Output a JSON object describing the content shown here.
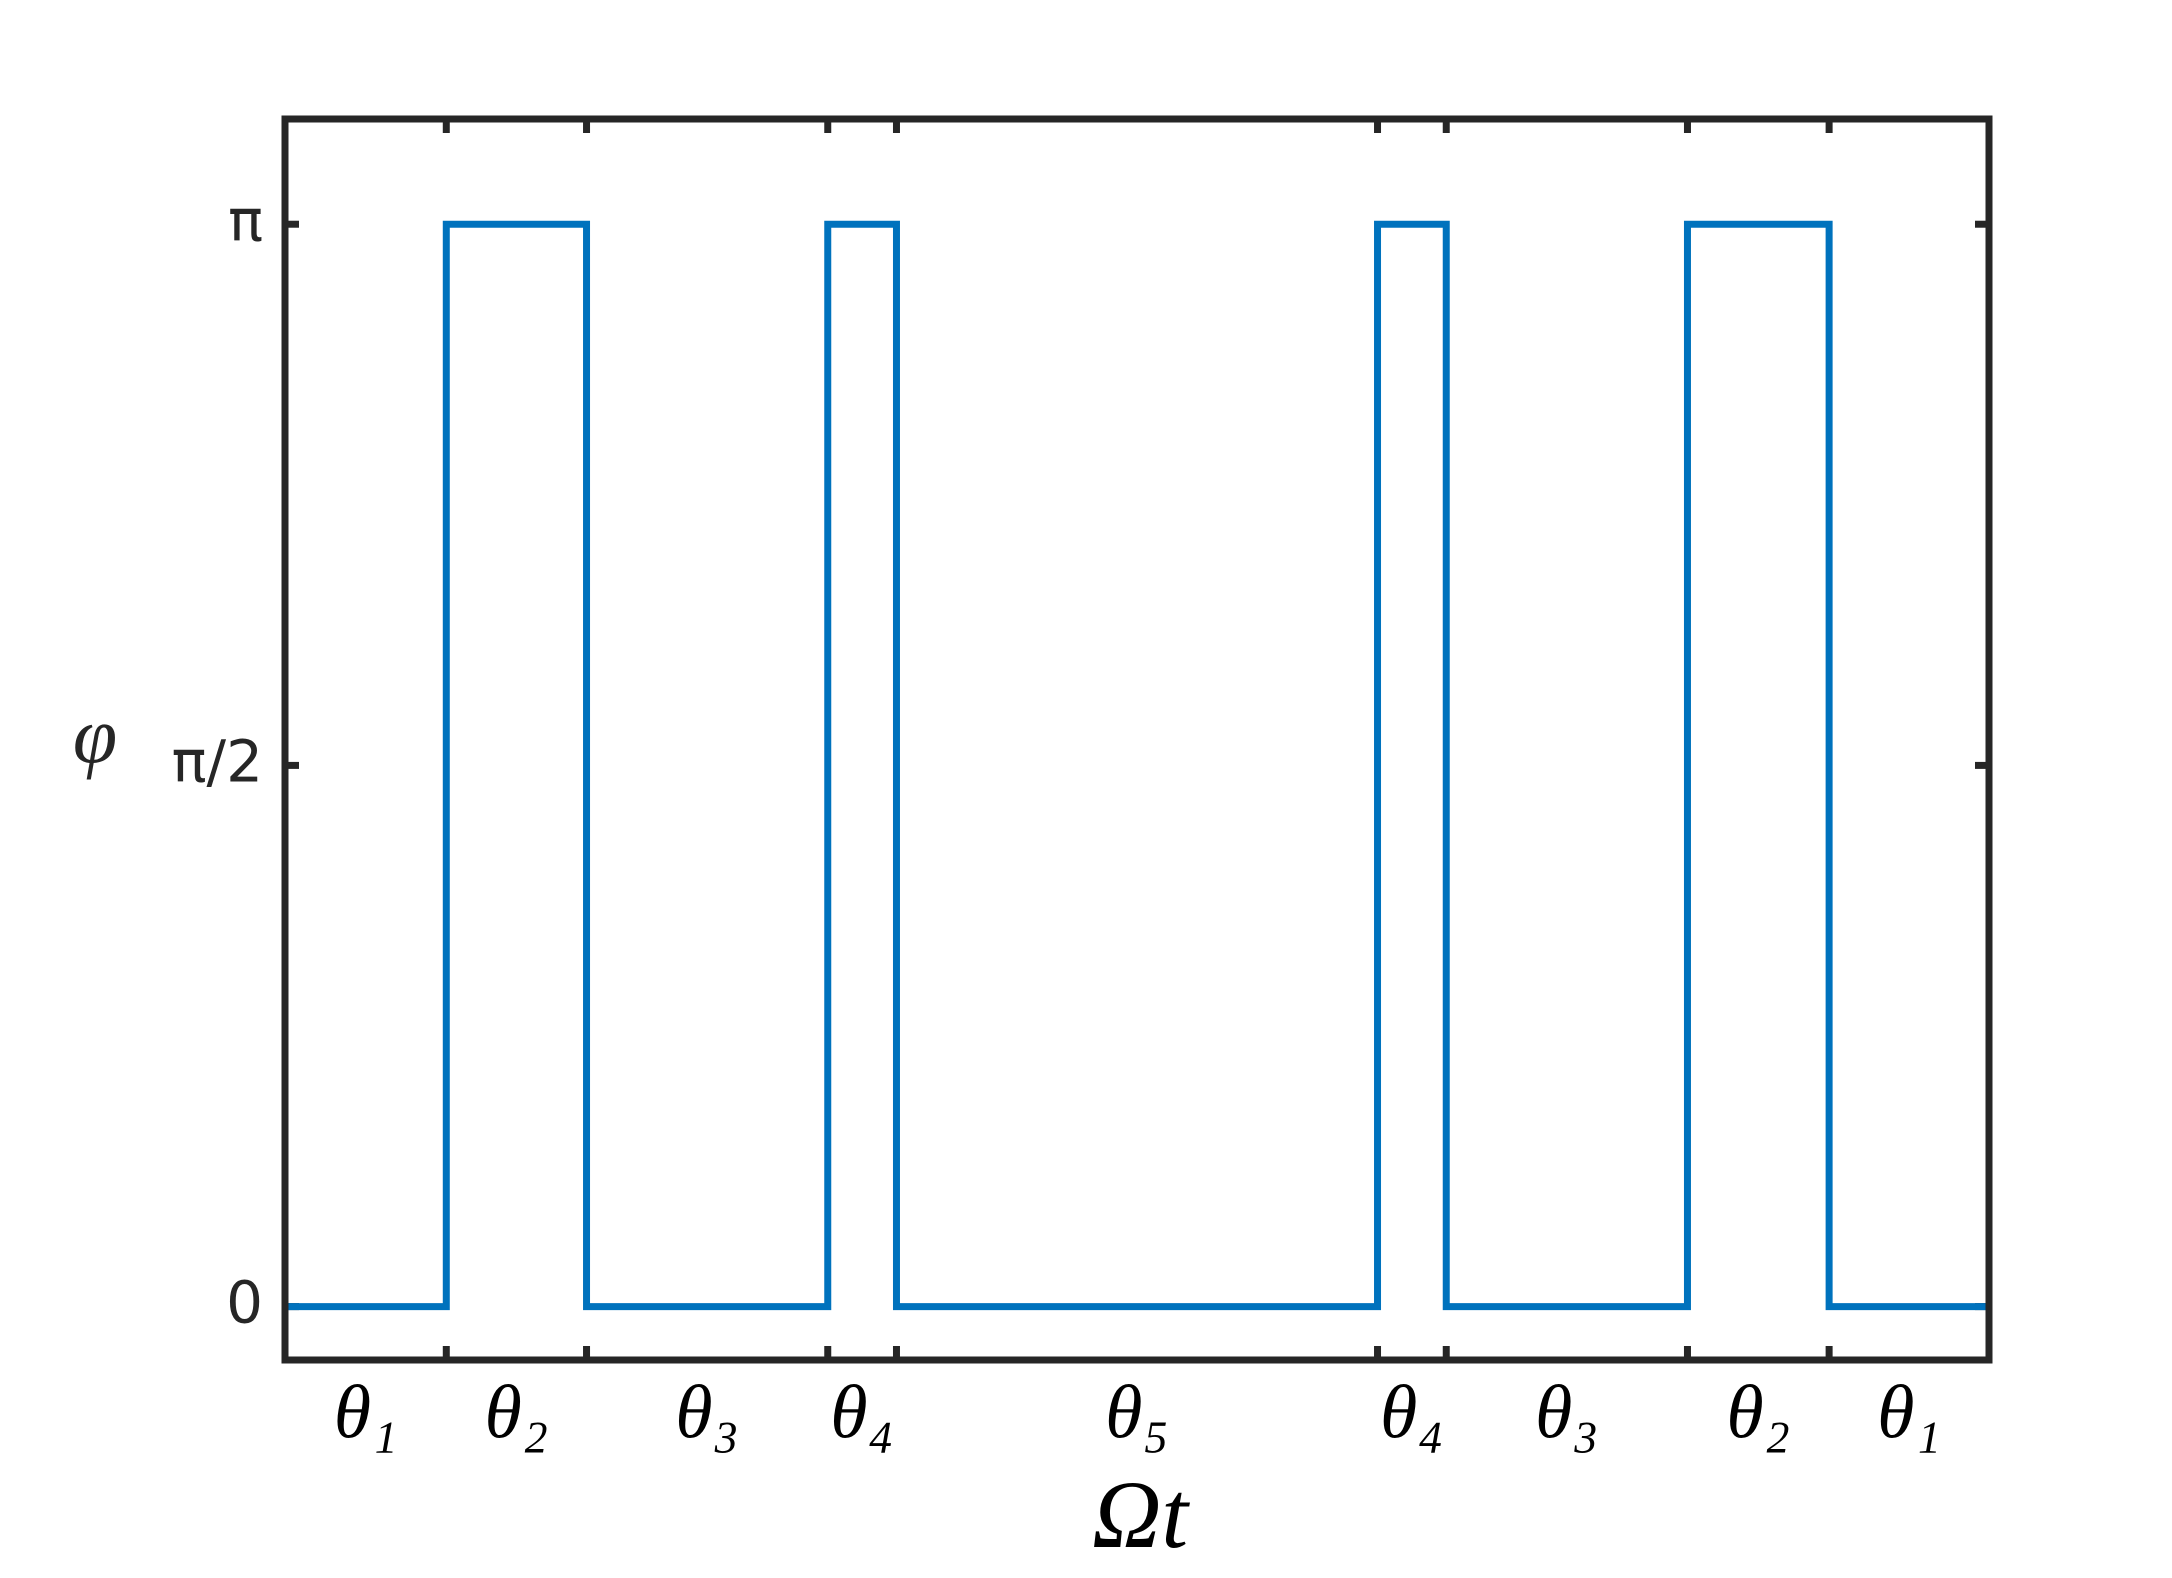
{
  "chart_data": {
    "type": "line",
    "x_label": "Ωt",
    "y_label": "φ",
    "x": [
      0,
      1.15,
      1.15,
      2.15,
      2.15,
      3.87,
      3.87,
      4.36,
      4.36,
      7.79,
      7.79,
      8.28,
      8.28,
      10.0,
      10.0,
      11.01,
      11.01,
      12.15
    ],
    "series": [
      {
        "color": "#0072bd",
        "values": [
          0,
          0,
          3.1416,
          3.1416,
          0,
          0,
          3.1416,
          3.1416,
          0,
          0,
          3.1416,
          3.1416,
          0,
          0,
          3.1416,
          3.1416,
          0,
          0
        ]
      }
    ],
    "xlim": [
      0,
      12.15
    ],
    "xticks": [
      1.15,
      2.15,
      3.87,
      4.36,
      7.79,
      8.28,
      10.0,
      11.01
    ],
    "interval_labels": [
      "θ₁",
      "θ₂",
      "θ₃",
      "θ₄",
      "θ₅",
      "θ₄",
      "θ₃",
      "θ₂",
      "θ₁"
    ],
    "ylim": [
      -0.155,
      3.447
    ],
    "yticks": [
      {
        "value": 0,
        "label": "0"
      },
      {
        "value": 1.5708,
        "label": "π/2"
      },
      {
        "value": 3.1416,
        "label": "π"
      }
    ],
    "grid": false
  }
}
